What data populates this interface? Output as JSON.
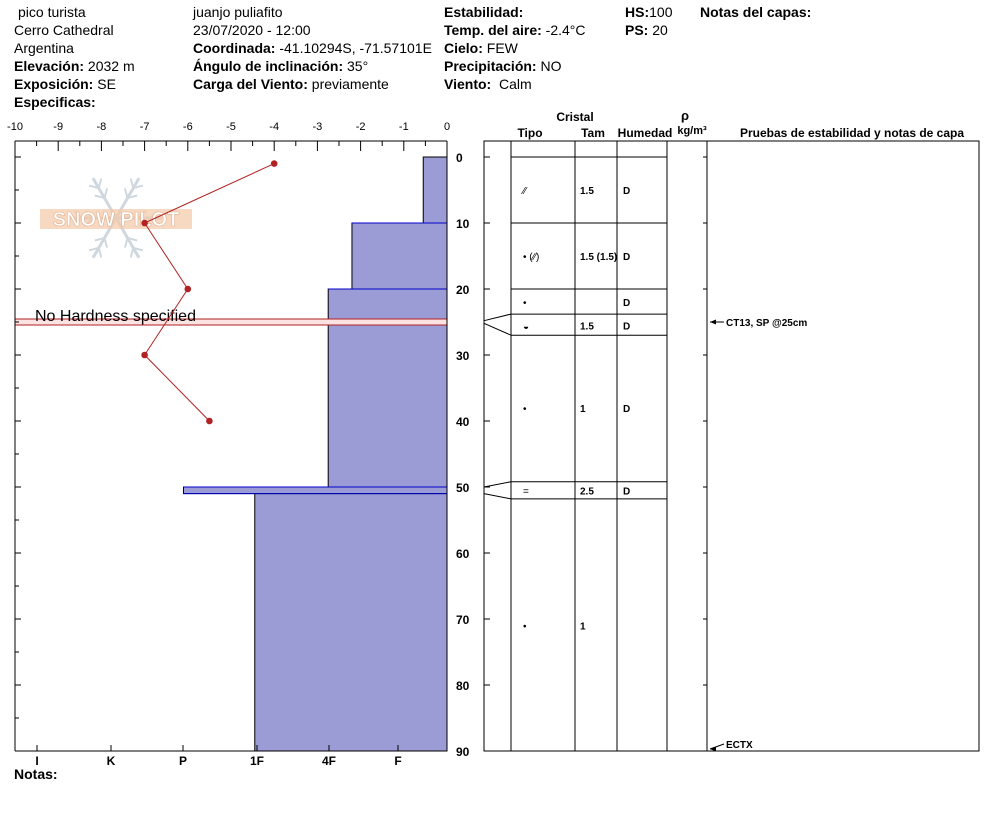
{
  "header": {
    "location": "pico turista",
    "area": "Cerro Cathedral",
    "country": "Argentina",
    "elevation_label": "Elevación:",
    "elevation": "2032 m",
    "exposure_label": "Exposición:",
    "exposure": "SE",
    "specifics_label": "Especificas:",
    "observer": "juanjo puliafito",
    "datetime": "23/07/2020 - 12:00",
    "coord_label": "Coordinada:",
    "coord": "-41.10294S, -71.57101E",
    "slope_label": "Ángulo de inclinación:",
    "slope": "35°",
    "wind_load_label": "Carga del Viento:",
    "wind_load": "previamente",
    "stability_label": "Estabilidad:",
    "air_temp_label": "Temp. del aire:",
    "air_temp": "-2.4°C",
    "sky_label": "Cielo:",
    "sky": "FEW",
    "precip_label": "Precipitación:",
    "precip": "NO",
    "wind_label": "Viento:",
    "wind": "Calm",
    "hs_label": "HS:",
    "hs": "100",
    "ps_label": "PS:",
    "ps": "20",
    "layer_notes_label": "Notas del capas:"
  },
  "footer": {
    "notes_label": "Notas:"
  },
  "watermark": "SNOW PILOT",
  "colors": {
    "hardness_fill": "#9b9bd6",
    "hardness_stroke": "#0000cc",
    "temp_line": "#b22222",
    "warning_fill": "#fbe3e3",
    "warning_stroke": "#b22222",
    "watermark": "#d0d8df"
  },
  "chart_data": {
    "type": "snow-profile",
    "temp_axis": {
      "ticks": [
        "-10",
        "-9",
        "-8",
        "-7",
        "-6",
        "-5",
        "-4",
        "-3",
        "-2",
        "-1",
        "0"
      ],
      "range": [
        -10,
        0
      ]
    },
    "depth_axis": {
      "ticks": [
        "0",
        "10",
        "20",
        "30",
        "40",
        "50",
        "60",
        "70",
        "80",
        "90"
      ],
      "range": [
        0,
        90
      ]
    },
    "hardness_axis": {
      "labels": [
        "I",
        "K",
        "P",
        "1F",
        "4F",
        "F"
      ]
    },
    "temperature_profile": [
      {
        "depth": 1,
        "temp": -4.0
      },
      {
        "depth": 10,
        "temp": -7.0
      },
      {
        "depth": 20,
        "temp": -6.0
      },
      {
        "depth": 30,
        "temp": -7.0
      },
      {
        "depth": 40,
        "temp": -5.5
      }
    ],
    "hardness_layers": [
      {
        "top": 0,
        "bottom": 10,
        "temp_equiv": -0.55
      },
      {
        "top": 10,
        "bottom": 20,
        "temp_equiv": -2.2
      },
      {
        "top": 20,
        "bottom": 50,
        "temp_equiv": -2.75
      },
      {
        "top": 50,
        "bottom": 51,
        "temp_equiv": -6.1
      },
      {
        "top": 51,
        "bottom": 90,
        "temp_equiv": -4.45
      }
    ],
    "warning": {
      "text": "No Hardness specified",
      "depth": 25
    },
    "table_headers": {
      "crystal": "Cristal",
      "type": "Tipo",
      "size": "Tam",
      "humidity": "Humedad",
      "rho": "ρ",
      "rho_unit": "kg/m³",
      "tests": "Pruebas de estabilidad y notas de capa"
    },
    "layer_boundaries": [
      0,
      10,
      20,
      23.8,
      27,
      49.2,
      51.8,
      90
    ],
    "connector_layers": [
      {
        "depth_top": 24.8,
        "depth_bottom": 25.2,
        "row_top": 23.8,
        "row_bottom": 27
      },
      {
        "depth_top": 50.0,
        "depth_bottom": 51.0,
        "row_top": 49.2,
        "row_bottom": 51.8
      }
    ],
    "layers": [
      {
        "row_depth": 5,
        "type": "⁄⁄",
        "size": "1.5",
        "humidity": "D"
      },
      {
        "row_depth": 15,
        "type": "•  (⁄⁄)",
        "size": "1.5 (1.5)",
        "humidity": "D"
      },
      {
        "row_depth": 22,
        "type": "•",
        "size": "",
        "humidity": "D"
      },
      {
        "row_depth": 25.5,
        "type": "◒",
        "size": "1.5",
        "humidity": "D"
      },
      {
        "row_depth": 38,
        "type": "•",
        "size": "1",
        "humidity": "D"
      },
      {
        "row_depth": 50.5,
        "type": "=",
        "size": "2.5",
        "humidity": "D"
      },
      {
        "row_depth": 71,
        "type": "•",
        "size": "1",
        "humidity": ""
      }
    ],
    "tests": [
      {
        "depth": 25,
        "text": "CT13, SP @25cm"
      },
      {
        "depth": 90,
        "text": "ECTX"
      }
    ]
  }
}
